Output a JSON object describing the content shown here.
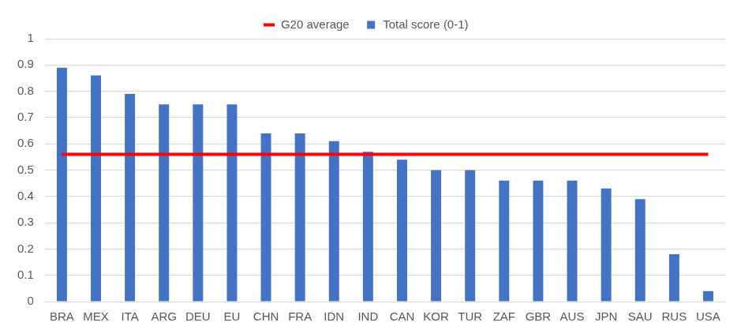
{
  "chart_data": {
    "type": "bar",
    "categories": [
      "BRA",
      "MEX",
      "ITA",
      "ARG",
      "DEU",
      "EU",
      "CHN",
      "FRA",
      "IDN",
      "IND",
      "CAN",
      "KOR",
      "TUR",
      "ZAF",
      "GBR",
      "AUS",
      "JPN",
      "SAU",
      "RUS",
      "USA"
    ],
    "series": [
      {
        "name": "Total score (0-1)",
        "color": "#4472c4",
        "values": [
          0.89,
          0.86,
          0.79,
          0.75,
          0.75,
          0.75,
          0.64,
          0.64,
          0.61,
          0.57,
          0.54,
          0.5,
          0.5,
          0.46,
          0.46,
          0.46,
          0.43,
          0.39,
          0.18,
          0.04
        ]
      },
      {
        "name": "G20 average",
        "color": "#ff0000",
        "type": "line",
        "values": [
          0.56,
          0.56,
          0.56,
          0.56,
          0.56,
          0.56,
          0.56,
          0.56,
          0.56,
          0.56,
          0.56,
          0.56,
          0.56,
          0.56,
          0.56,
          0.56,
          0.56,
          0.56,
          0.56,
          0.56
        ]
      }
    ],
    "ylim": [
      0,
      1
    ],
    "yticks": [
      0,
      0.1,
      0.2,
      0.3,
      0.4,
      0.5,
      0.6,
      0.7,
      0.8,
      0.9,
      1
    ],
    "grid": true,
    "legend": "top"
  }
}
